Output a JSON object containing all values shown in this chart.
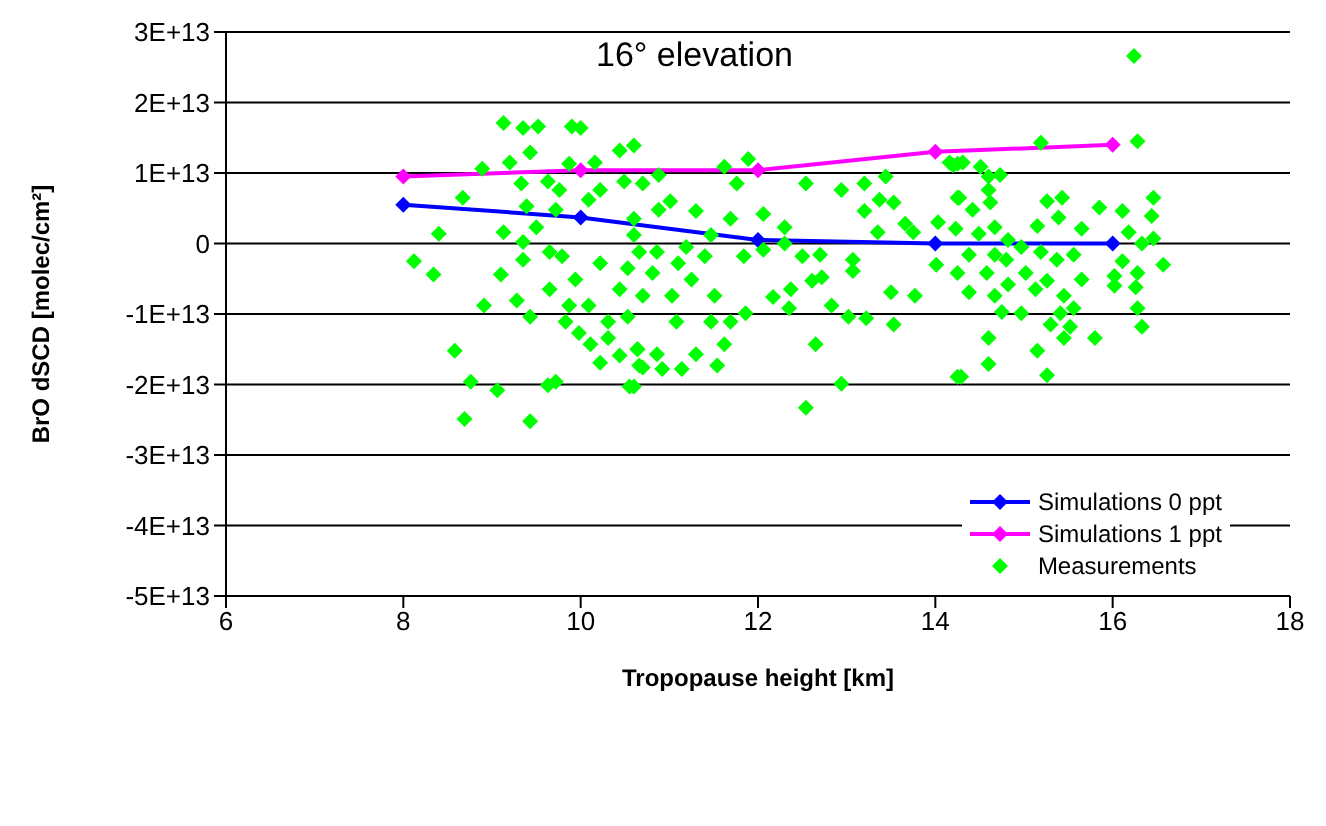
{
  "chart_data": {
    "type": "scatter",
    "xlabel": "Tropopause height [km]",
    "ylabel": "BrO dSCD [molec/cm²]",
    "annotations": [
      "16° elevation"
    ],
    "xlim": [
      6,
      18
    ],
    "xticks": [
      6,
      8,
      10,
      12,
      14,
      16,
      18
    ],
    "ylim": [
      -50000000000000.0,
      30000000000000.0
    ],
    "yticks": [
      {
        "value": -50000000000000.0,
        "label": "-5E+13"
      },
      {
        "value": -40000000000000.0,
        "label": "-4E+13"
      },
      {
        "value": -30000000000000.0,
        "label": "-3E+13"
      },
      {
        "value": -20000000000000.0,
        "label": "-2E+13"
      },
      {
        "value": -10000000000000.0,
        "label": "-1E+13"
      },
      0,
      {
        "value": 10000000000000.0,
        "label": "1E+13"
      },
      {
        "value": 20000000000000.0,
        "label": "2E+13"
      },
      {
        "value": 30000000000000.0,
        "label": "3E+13"
      }
    ],
    "grid": "y",
    "legend": "bottom right",
    "marker": "diamond",
    "series": [
      {
        "name": "Simulations 0 ppt",
        "type": "line",
        "color": "#0000ff",
        "x": [
          8,
          10,
          12,
          14,
          16
        ],
        "values": [
          5500000000000.0,
          3700000000000.0,
          500000000000.0,
          0,
          0
        ]
      },
      {
        "name": "Simulations 1 ppt",
        "type": "line",
        "color": "#ff00ff",
        "x": [
          8,
          10,
          12,
          14,
          16
        ],
        "values": [
          9500000000000.0,
          10400000000000.0,
          10400000000000.0,
          13000000000000.0,
          14000000000000.0
        ]
      },
      {
        "name": "Measurements",
        "type": "scatter",
        "color": "#00ff00",
        "x": [
          9.13,
          9.35,
          9.52,
          9.9,
          10.0,
          9.43,
          8.89,
          9.2,
          8.67,
          8.4,
          8.12,
          8.34,
          8.91,
          8.58,
          8.76,
          9.06,
          8.69,
          9.43,
          9.63,
          9.13,
          9.1,
          9.35,
          9.35,
          9.28,
          9.43,
          9.33,
          9.63,
          9.76,
          9.39,
          10.44,
          10.6,
          10.16,
          9.87,
          10.49,
          10.7,
          10.22,
          10.09,
          9.72,
          9.5,
          9.79,
          9.94,
          10.22,
          10.44,
          9.65,
          9.87,
          9.83,
          10.09,
          10.31,
          9.98,
          10.11,
          10.31,
          10.22,
          10.44,
          10.64,
          10.7,
          10.6,
          9.72,
          10.53,
          10.66,
          9.65,
          10.6,
          10.88,
          11.01,
          10.88,
          11.3,
          11.69,
          11.62,
          11.89,
          11.76,
          12.06,
          12.3,
          12.54,
          12.94,
          13.2,
          13.44,
          13.37,
          13.53,
          13.2,
          13.35,
          13.66,
          13.75,
          14.03,
          14.25,
          14.25,
          14.16,
          12.3,
          12.5,
          12.7,
          13.07,
          12.72,
          12.61,
          12.37,
          12.35,
          12.17,
          12.83,
          13.02,
          13.22,
          13.07,
          13.5,
          13.77,
          14.01,
          14.25,
          13.53,
          12.65,
          12.94,
          12.54,
          14.25,
          11.86,
          12.06,
          11.84,
          11.51,
          11.69,
          11.62,
          11.54,
          11.3,
          11.14,
          10.92,
          10.66,
          10.55,
          10.64,
          10.86,
          11.08,
          11.47,
          11.25,
          11.03,
          10.81,
          11.1,
          11.4,
          11.47,
          11.19,
          10.86,
          10.6,
          10.7,
          10.53,
          16.24,
          16.28,
          15.19,
          14.2,
          14.31,
          14.51,
          14.6,
          14.73,
          14.6,
          14.27,
          14.62,
          14.42,
          15.26,
          15.43,
          15.85,
          15.39,
          15.15,
          15.65,
          16.11,
          16.44,
          16.46,
          14.23,
          14.49,
          14.67,
          14.82,
          16.18,
          16.33,
          16.46,
          16.57,
          16.28,
          16.11,
          16.02,
          16.02,
          16.26,
          15.65,
          15.56,
          15.37,
          15.19,
          14.97,
          15.02,
          15.13,
          15.26,
          15.45,
          14.82,
          14.67,
          14.38,
          14.58,
          14.67,
          14.8,
          14.38,
          14.75,
          14.97,
          15.41,
          15.56,
          15.3,
          15.52,
          15.45,
          15.8,
          16.28,
          16.33,
          14.6,
          15.15,
          14.6,
          14.29,
          15.26
        ],
        "values": [
          17100000000000.0,
          16400000000000.0,
          16600000000000.0,
          16600000000000.0,
          16400000000000.0,
          12900000000000.0,
          10600000000000.0,
          11500000000000.0,
          6500000000000.0,
          1400000000000.0,
          -2500000000000.0,
          -4400000000000.0,
          -8800000000000.0,
          -15200000000000.0,
          -19600000000000.0,
          -20800000000000.0,
          -24900000000000.0,
          -25200000000000.0,
          -20100000000000.0,
          1600000000000.0,
          -4400000000000.0,
          200000000000.0,
          -2300000000000.0,
          -8100000000000.0,
          -10400000000000.0,
          8500000000000.0,
          8800000000000.0,
          7600000000000.0,
          5300000000000.0,
          13200000000000.0,
          13900000000000.0,
          11500000000000.0,
          11300000000000.0,
          8800000000000.0,
          8500000000000.0,
          7600000000000.0,
          6200000000000.0,
          4800000000000.0,
          2300000000000.0,
          -1800000000000.0,
          -5100000000000.0,
          -2800000000000.0,
          -6500000000000.0,
          -6500000000000.0,
          -8800000000000.0,
          -11100000000000.0,
          -8800000000000.0,
          -11100000000000.0,
          -12700000000000.0,
          -14300000000000.0,
          -13400000000000.0,
          -16900000000000.0,
          -15900000000000.0,
          -15000000000000.0,
          -17600000000000.0,
          -20300000000000.0,
          -19600000000000.0,
          -3500000000000.0,
          -1200000000000.0,
          -1200000000000.0,
          3500000000000.0,
          9700000000000.0,
          6000000000000.0,
          4800000000000.0,
          4600000000000.0,
          3500000000000.0,
          10900000000000.0,
          12000000000000.0,
          8500000000000.0,
          4200000000000.0,
          2300000000000.0,
          8500000000000.0,
          7600000000000.0,
          8500000000000.0,
          9500000000000.0,
          6200000000000.0,
          5800000000000.0,
          4600000000000.0,
          1600000000000.0,
          2800000000000.0,
          1600000000000.0,
          3000000000000.0,
          6500000000000.0,
          11300000000000.0,
          11500000000000.0,
          0,
          -1800000000000.0,
          -1600000000000.0,
          -2300000000000.0,
          -4800000000000.0,
          -5300000000000.0,
          -6500000000000.0,
          -9200000000000.0,
          -7600000000000.0,
          -8800000000000.0,
          -10400000000000.0,
          -10600000000000.0,
          -3900000000000.0,
          -6900000000000.0,
          -7400000000000.0,
          -3000000000000.0,
          -4200000000000.0,
          -11500000000000.0,
          -14300000000000.0,
          -19900000000000.0,
          -23300000000000.0,
          -18900000000000.0,
          -9900000000000.0,
          -900000000000.0,
          -1800000000000.0,
          -7400000000000.0,
          -11100000000000.0,
          -14300000000000.0,
          -17300000000000.0,
          -15700000000000.0,
          -17800000000000.0,
          -17800000000000.0,
          -17300000000000.0,
          -20300000000000.0,
          -15000000000000.0,
          -15700000000000.0,
          -11100000000000.0,
          -11100000000000.0,
          -5100000000000.0,
          -7400000000000.0,
          -4200000000000.0,
          -2800000000000.0,
          -1800000000000.0,
          1200000000000.0,
          -500000000000.0,
          -1200000000000.0,
          1200000000000.0,
          -7400000000000.0,
          -10400000000000.0,
          26600000000000.0,
          14500000000000.0,
          14300000000000.0,
          11100000000000.0,
          11500000000000.0,
          10900000000000.0,
          9500000000000.0,
          9700000000000.0,
          7600000000000.0,
          6500000000000.0,
          5800000000000.0,
          4800000000000.0,
          6000000000000.0,
          6500000000000.0,
          5100000000000.0,
          3700000000000.0,
          2500000000000.0,
          2100000000000.0,
          4600000000000.0,
          3900000000000.0,
          6500000000000.0,
          2100000000000.0,
          1400000000000.0,
          2300000000000.0,
          500000000000.0,
          1600000000000.0,
          0,
          700000000000.0,
          -3000000000000.0,
          -4200000000000.0,
          -2500000000000.0,
          -4600000000000.0,
          -6000000000000.0,
          -6200000000000.0,
          -5100000000000.0,
          -1600000000000.0,
          -2300000000000.0,
          -1200000000000.0,
          -500000000000.0,
          -4200000000000.0,
          -6500000000000.0,
          -5300000000000.0,
          -7400000000000.0,
          -5800000000000.0,
          -7400000000000.0,
          -6900000000000.0,
          -4200000000000.0,
          -1600000000000.0,
          -2300000000000.0,
          -1600000000000.0,
          -9700000000000.0,
          -9900000000000.0,
          -9900000000000.0,
          -9200000000000.0,
          -11500000000000.0,
          -11800000000000.0,
          -13400000000000.0,
          -13400000000000.0,
          -9200000000000.0,
          -11800000000000.0,
          -13400000000000.0,
          -15200000000000.0,
          -17100000000000.0,
          -18900000000000.0,
          -18700000000000.0
        ]
      }
    ]
  }
}
